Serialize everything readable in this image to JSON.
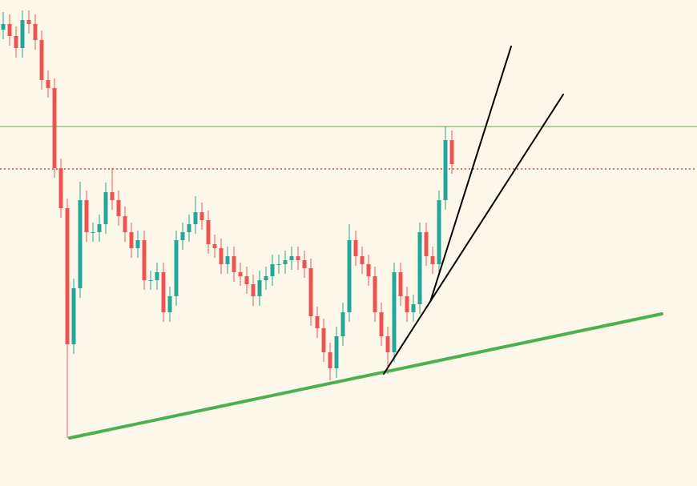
{
  "chart_data": {
    "type": "candlestick",
    "xlim": [
      -0.5,
      108.25
    ],
    "ylim": [
      0,
      607
    ],
    "background": "#fdf8ea",
    "up_color": "#26a69a",
    "down_color": "#ef5350",
    "open": [
      570,
      577,
      562,
      547,
      582,
      577,
      557,
      507,
      497,
      397,
      347,
      177,
      247,
      357,
      317,
      317,
      327,
      367,
      357,
      337,
      317,
      297,
      307,
      257,
      257,
      267,
      217,
      237,
      307,
      317,
      327,
      342,
      332,
      302,
      297,
      277,
      287,
      267,
      262,
      252,
      237,
      257,
      262,
      277,
      277,
      282,
      287,
      282,
      272,
      212,
      197,
      167,
      147,
      187,
      217,
      307,
      287,
      277,
      262,
      217,
      187,
      167,
      267,
      237,
      217,
      227,
      317,
      287,
      277,
      357,
      432
    ],
    "high": [
      592,
      589,
      574,
      594,
      594,
      589,
      569,
      519,
      509,
      409,
      359,
      259,
      380,
      369,
      329,
      339,
      379,
      397,
      369,
      349,
      329,
      319,
      319,
      269,
      279,
      279,
      249,
      319,
      329,
      339,
      362,
      354,
      344,
      314,
      309,
      299,
      299,
      279,
      274,
      264,
      269,
      274,
      289,
      289,
      294,
      299,
      299,
      294,
      284,
      224,
      209,
      179,
      199,
      229,
      327,
      319,
      299,
      289,
      274,
      229,
      199,
      279,
      279,
      249,
      239,
      329,
      329,
      299,
      369,
      449,
      444
    ],
    "low": [
      558,
      550,
      535,
      535,
      565,
      545,
      495,
      485,
      385,
      335,
      60,
      165,
      235,
      305,
      305,
      305,
      315,
      345,
      325,
      305,
      285,
      285,
      245,
      245,
      245,
      205,
      205,
      225,
      295,
      305,
      315,
      320,
      290,
      285,
      265,
      265,
      255,
      250,
      240,
      225,
      225,
      245,
      250,
      265,
      265,
      270,
      270,
      260,
      200,
      185,
      155,
      132,
      135,
      175,
      205,
      275,
      265,
      250,
      205,
      175,
      140,
      155,
      225,
      205,
      205,
      215,
      275,
      265,
      265,
      345,
      390
    ],
    "close": [
      577,
      562,
      547,
      582,
      577,
      557,
      507,
      497,
      397,
      347,
      177,
      247,
      357,
      317,
      317,
      327,
      367,
      357,
      337,
      317,
      297,
      307,
      257,
      257,
      267,
      217,
      237,
      307,
      317,
      327,
      342,
      332,
      302,
      297,
      277,
      287,
      267,
      262,
      252,
      237,
      257,
      262,
      277,
      277,
      282,
      287,
      282,
      272,
      212,
      197,
      167,
      147,
      187,
      217,
      307,
      287,
      277,
      262,
      217,
      187,
      167,
      267,
      237,
      217,
      227,
      317,
      287,
      277,
      357,
      432,
      402
    ],
    "hlines": [
      {
        "value": 449,
        "color": "#5aa84f",
        "style": "solid"
      },
      {
        "value": 396,
        "color": "#d0453f",
        "style": "dotted"
      }
    ],
    "lines": [
      {
        "color": "#4caf50",
        "width": 4,
        "x": [
          10.375,
          102.75
        ],
        "y": [
          60,
          215
        ]
      },
      {
        "color": "#000000",
        "width": 2,
        "x": [
          59.375,
          87.375
        ],
        "y": [
          140,
          489
        ]
      },
      {
        "color": "#000000",
        "width": 2,
        "x": [
          66.625,
          79.25
        ],
        "y": [
          230,
          549
        ]
      }
    ]
  }
}
